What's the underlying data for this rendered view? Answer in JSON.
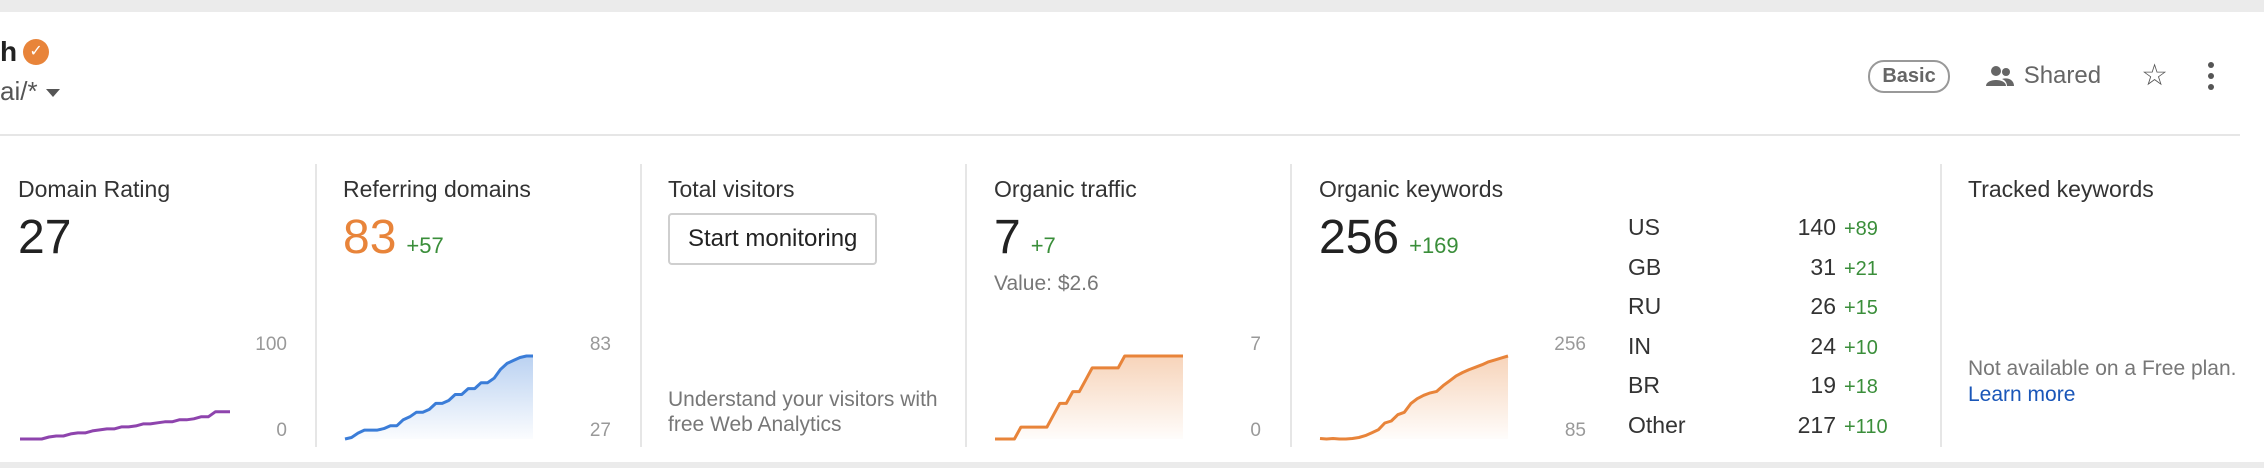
{
  "header": {
    "title": "h",
    "url_fragment": "ai/*",
    "plan_badge": "Basic",
    "shared_label": "Shared"
  },
  "metrics": {
    "domain_rating": {
      "label": "Domain Rating",
      "value": "27",
      "axis_max": "100",
      "axis_min": "0"
    },
    "referring_domains": {
      "label": "Referring domains",
      "value": "83",
      "delta": "+57",
      "axis_max": "83",
      "axis_min": "27"
    },
    "total_visitors": {
      "label": "Total visitors",
      "button": "Start monitoring",
      "hint": "Understand your visitors with free Web Analytics"
    },
    "organic_traffic": {
      "label": "Organic traffic",
      "value": "7",
      "delta": "+7",
      "subvalue": "Value: $2.6",
      "axis_max": "7",
      "axis_min": "0"
    },
    "organic_keywords": {
      "label": "Organic keywords",
      "value": "256",
      "delta": "+169",
      "axis_max": "256",
      "axis_min": "85",
      "countries": [
        {
          "code": "US",
          "value": "140",
          "delta": "+89"
        },
        {
          "code": "GB",
          "value": "31",
          "delta": "+21"
        },
        {
          "code": "RU",
          "value": "26",
          "delta": "+15"
        },
        {
          "code": "IN",
          "value": "24",
          "delta": "+10"
        },
        {
          "code": "BR",
          "value": "19",
          "delta": "+18"
        },
        {
          "code": "Other",
          "value": "217",
          "delta": "+110"
        }
      ]
    },
    "tracked_keywords": {
      "label": "Tracked keywords",
      "note": "Not available on a Free plan.",
      "link": "Learn more"
    }
  },
  "chart_data": [
    {
      "type": "line",
      "series": [
        {
          "values": [
            0,
            0,
            0,
            0,
            2,
            3,
            3,
            5,
            6,
            6,
            8,
            9,
            10,
            10,
            12,
            12,
            13,
            15,
            15,
            16,
            17,
            17,
            19,
            19,
            20,
            22,
            22,
            27,
            27,
            27
          ]
        }
      ],
      "ylim": [
        0,
        100
      ],
      "color": "#8e44ad"
    },
    {
      "type": "area",
      "series": [
        {
          "values": [
            27,
            28,
            31,
            33,
            33,
            33,
            34,
            36,
            36,
            40,
            42,
            45,
            45,
            47,
            51,
            51,
            53,
            57,
            57,
            61,
            61,
            65,
            65,
            68,
            74,
            78,
            80,
            82,
            83,
            83
          ]
        }
      ],
      "ylim": [
        27,
        83
      ],
      "color": "#3b7dd8"
    },
    {
      "type": "area",
      "series": [
        {
          "values": [
            0,
            0,
            0,
            0,
            1,
            1,
            1,
            1,
            1,
            2,
            3,
            3,
            4,
            4,
            5,
            6,
            6,
            6,
            6,
            6,
            7,
            7,
            7,
            7,
            7,
            7,
            7,
            7,
            7,
            7
          ]
        }
      ],
      "ylim": [
        0,
        7
      ],
      "color": "#e8843a"
    },
    {
      "type": "area",
      "series": [
        {
          "values": [
            86,
            85,
            86,
            85,
            85,
            86,
            88,
            92,
            98,
            104,
            118,
            122,
            135,
            140,
            158,
            168,
            175,
            180,
            183,
            195,
            205,
            215,
            222,
            228,
            233,
            238,
            244,
            248,
            252,
            256
          ]
        }
      ],
      "ylim": [
        85,
        256
      ],
      "color": "#e8843a"
    }
  ]
}
